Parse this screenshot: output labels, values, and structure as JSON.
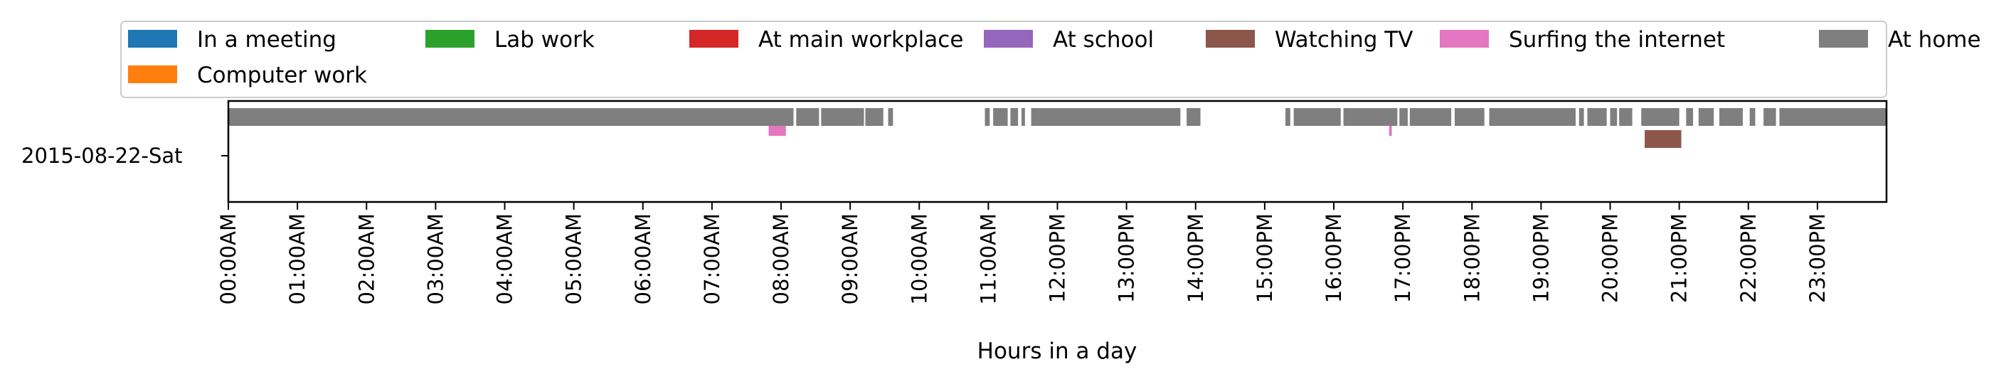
{
  "chart_data": {
    "type": "timeline",
    "xlabel": "Hours in a day",
    "y_category": "2015-08-22-Sat",
    "x_range_hours": [
      0,
      24
    ],
    "x_ticks": [
      "00:00AM",
      "01:00AM",
      "02:00AM",
      "03:00AM",
      "04:00AM",
      "05:00AM",
      "06:00AM",
      "07:00AM",
      "08:00AM",
      "09:00AM",
      "10:00AM",
      "11:00AM",
      "12:00PM",
      "13:00PM",
      "14:00PM",
      "15:00PM",
      "16:00PM",
      "17:00PM",
      "18:00PM",
      "19:00PM",
      "20:00PM",
      "21:00PM",
      "22:00PM",
      "23:00PM"
    ],
    "legend_placement": "top",
    "legend": [
      {
        "label": "In a meeting",
        "color": "#1f77b4"
      },
      {
        "label": "Lab work",
        "color": "#2ca02c"
      },
      {
        "label": "At main workplace",
        "color": "#d62728"
      },
      {
        "label": "At school",
        "color": "#9467bd"
      },
      {
        "label": "Watching TV",
        "color": "#8c564b"
      },
      {
        "label": "Surfing the internet",
        "color": "#e377c2"
      },
      {
        "label": "At home",
        "color": "#7f7f7f"
      },
      {
        "label": "Computer work",
        "color": "#ff7f0e"
      }
    ],
    "series": [
      {
        "name": "At home",
        "color": "#7f7f7f",
        "lane": 0,
        "intervals": [
          [
            0.0,
            8.18
          ],
          [
            8.22,
            8.55
          ],
          [
            8.58,
            9.2
          ],
          [
            9.22,
            9.48
          ],
          [
            9.55,
            9.62
          ],
          [
            10.95,
            11.02
          ],
          [
            11.07,
            11.28
          ],
          [
            11.32,
            11.43
          ],
          [
            11.48,
            11.53
          ],
          [
            11.62,
            13.78
          ],
          [
            13.87,
            14.07
          ],
          [
            15.3,
            15.37
          ],
          [
            15.42,
            16.1
          ],
          [
            16.14,
            16.92
          ],
          [
            16.95,
            17.07
          ],
          [
            17.1,
            17.7
          ],
          [
            17.75,
            18.18
          ],
          [
            18.25,
            19.5
          ],
          [
            19.55,
            19.62
          ],
          [
            19.67,
            19.95
          ],
          [
            20.0,
            20.1
          ],
          [
            20.13,
            20.32
          ],
          [
            20.45,
            21.0
          ],
          [
            21.1,
            21.2
          ],
          [
            21.28,
            21.5
          ],
          [
            21.58,
            21.92
          ],
          [
            22.02,
            22.1
          ],
          [
            22.22,
            22.4
          ],
          [
            22.45,
            24.0
          ]
        ]
      },
      {
        "name": "Surfing the internet",
        "color": "#e377c2",
        "lane": 1,
        "intervals": [
          [
            7.82,
            8.07
          ],
          [
            16.8,
            16.84
          ]
        ]
      },
      {
        "name": "Watching TV",
        "color": "#8c564b",
        "lane": 2,
        "intervals": [
          [
            20.5,
            21.03
          ]
        ]
      }
    ]
  }
}
